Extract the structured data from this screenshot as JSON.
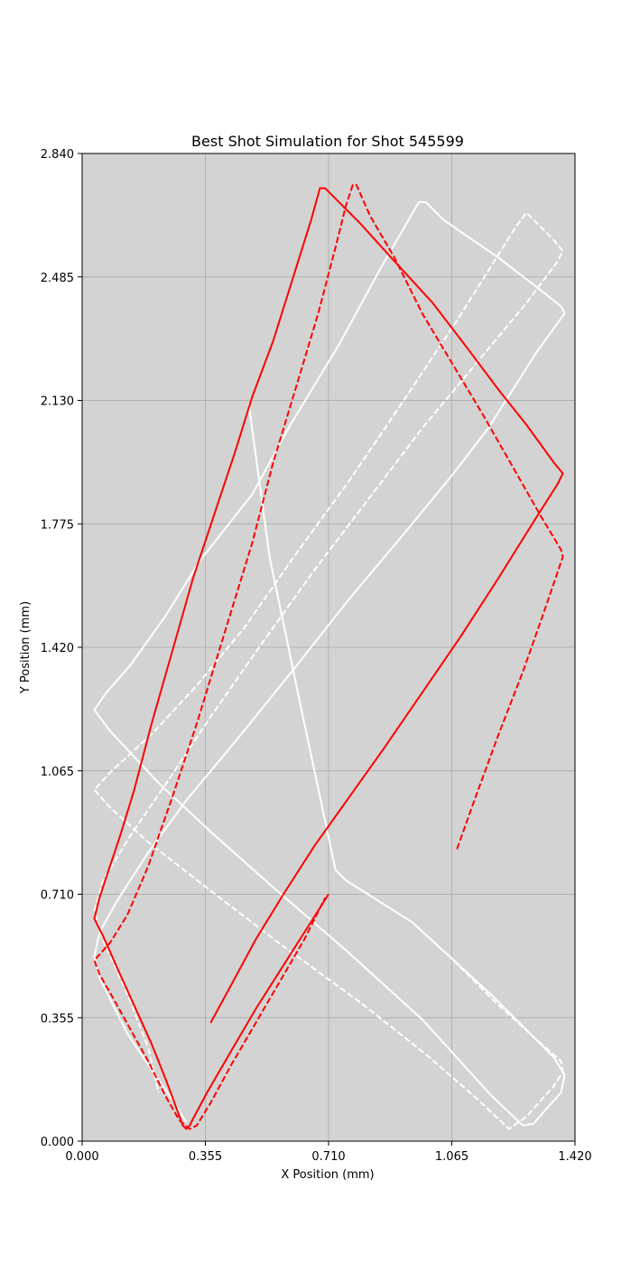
{
  "chart_data": {
    "type": "line",
    "title": "Best Shot Simulation for Shot 545599",
    "xlabel": "X Position (mm)",
    "ylabel": "Y Position (mm)",
    "xlim": [
      0,
      1.42
    ],
    "ylim": [
      0,
      2.84
    ],
    "xticks": [
      "0.000",
      "0.355",
      "0.710",
      "1.065",
      "1.420"
    ],
    "yticks": [
      "0.000",
      "0.355",
      "0.710",
      "1.065",
      "1.420",
      "1.775",
      "2.130",
      "2.485",
      "2.840"
    ],
    "grid": true,
    "background": "#d3d3d3",
    "series": [
      {
        "color": "#ffffff",
        "dash": "solid",
        "points": [
          [
            0.48,
            2.12
          ],
          [
            0.54,
            1.68
          ],
          [
            0.63,
            1.25
          ],
          [
            0.7,
            0.92
          ],
          [
            0.73,
            0.78
          ],
          [
            0.76,
            0.75
          ],
          [
            0.95,
            0.63
          ],
          [
            1.18,
            0.42
          ],
          [
            1.36,
            0.24
          ],
          [
            1.39,
            0.19
          ],
          [
            1.38,
            0.14
          ],
          [
            1.3,
            0.05
          ],
          [
            1.27,
            0.045
          ],
          [
            1.18,
            0.13
          ],
          [
            0.98,
            0.35
          ],
          [
            0.77,
            0.54
          ],
          [
            0.55,
            0.73
          ],
          [
            0.37,
            0.89
          ],
          [
            0.22,
            1.03
          ],
          [
            0.08,
            1.18
          ],
          [
            0.035,
            1.24
          ],
          [
            0.07,
            1.29
          ],
          [
            0.14,
            1.37
          ],
          [
            0.24,
            1.51
          ],
          [
            0.34,
            1.67
          ],
          [
            0.49,
            1.86
          ],
          [
            0.6,
            2.06
          ],
          [
            0.74,
            2.29
          ],
          [
            0.86,
            2.51
          ],
          [
            0.97,
            2.7
          ],
          [
            0.99,
            2.7
          ],
          [
            1.04,
            2.65
          ],
          [
            1.2,
            2.54
          ],
          [
            1.33,
            2.44
          ],
          [
            1.38,
            2.4
          ],
          [
            1.39,
            2.38
          ],
          [
            1.31,
            2.27
          ],
          [
            1.17,
            2.05
          ],
          [
            1.07,
            1.92
          ],
          [
            0.93,
            1.75
          ],
          [
            0.77,
            1.56
          ],
          [
            0.62,
            1.37
          ],
          [
            0.45,
            1.16
          ],
          [
            0.3,
            0.98
          ],
          [
            0.19,
            0.83
          ],
          [
            0.1,
            0.69
          ],
          [
            0.05,
            0.6
          ],
          [
            0.035,
            0.53
          ],
          [
            0.05,
            0.47
          ],
          [
            0.09,
            0.39
          ],
          [
            0.13,
            0.31
          ],
          [
            0.19,
            0.22
          ],
          [
            0.26,
            0.12
          ],
          [
            0.29,
            0.07
          ],
          [
            0.3,
            0.055
          ]
        ]
      },
      {
        "color": "#ffffff",
        "dash": "dashed",
        "points": [
          [
            1.07,
            0.52
          ],
          [
            1.19,
            0.4
          ],
          [
            1.3,
            0.3
          ],
          [
            1.38,
            0.23
          ],
          [
            1.385,
            0.2
          ],
          [
            1.36,
            0.16
          ],
          [
            1.28,
            0.07
          ],
          [
            1.23,
            0.035
          ],
          [
            1.14,
            0.12
          ],
          [
            0.99,
            0.25
          ],
          [
            0.8,
            0.4
          ],
          [
            0.58,
            0.56
          ],
          [
            0.37,
            0.72
          ],
          [
            0.19,
            0.86
          ],
          [
            0.08,
            0.96
          ],
          [
            0.035,
            1.01
          ],
          [
            0.08,
            1.06
          ],
          [
            0.2,
            1.17
          ],
          [
            0.33,
            1.31
          ],
          [
            0.47,
            1.48
          ],
          [
            0.61,
            1.68
          ],
          [
            0.77,
            1.9
          ],
          [
            0.92,
            2.12
          ],
          [
            1.08,
            2.36
          ],
          [
            1.2,
            2.55
          ],
          [
            1.25,
            2.63
          ],
          [
            1.28,
            2.67
          ],
          [
            1.3,
            2.65
          ],
          [
            1.36,
            2.59
          ],
          [
            1.385,
            2.56
          ],
          [
            1.37,
            2.53
          ],
          [
            1.28,
            2.41
          ],
          [
            1.13,
            2.23
          ],
          [
            0.98,
            2.05
          ],
          [
            0.82,
            1.84
          ],
          [
            0.66,
            1.63
          ],
          [
            0.51,
            1.42
          ],
          [
            0.37,
            1.22
          ],
          [
            0.25,
            1.04
          ],
          [
            0.14,
            0.88
          ],
          [
            0.06,
            0.75
          ],
          [
            0.035,
            0.66
          ],
          [
            0.06,
            0.58
          ],
          [
            0.1,
            0.49
          ],
          [
            0.14,
            0.4
          ],
          [
            0.17,
            0.32
          ],
          [
            0.19,
            0.27
          ],
          [
            0.22,
            0.14
          ]
        ]
      },
      {
        "color": "#ff0000",
        "dash": "solid",
        "points": [
          [
            0.71,
            0.71
          ],
          [
            0.64,
            0.6
          ],
          [
            0.57,
            0.49
          ],
          [
            0.5,
            0.38
          ],
          [
            0.43,
            0.26
          ],
          [
            0.36,
            0.14
          ],
          [
            0.32,
            0.065
          ],
          [
            0.31,
            0.045
          ],
          [
            0.3,
            0.035
          ],
          [
            0.29,
            0.045
          ],
          [
            0.27,
            0.1
          ],
          [
            0.24,
            0.18
          ],
          [
            0.2,
            0.28
          ],
          [
            0.15,
            0.39
          ],
          [
            0.1,
            0.5
          ],
          [
            0.06,
            0.59
          ],
          [
            0.035,
            0.64
          ],
          [
            0.05,
            0.7
          ],
          [
            0.07,
            0.76
          ],
          [
            0.11,
            0.88
          ],
          [
            0.15,
            1.01
          ],
          [
            0.2,
            1.2
          ],
          [
            0.26,
            1.41
          ],
          [
            0.32,
            1.62
          ],
          [
            0.38,
            1.8
          ],
          [
            0.44,
            1.98
          ],
          [
            0.49,
            2.14
          ],
          [
            0.55,
            2.3
          ],
          [
            0.61,
            2.49
          ],
          [
            0.66,
            2.65
          ],
          [
            0.685,
            2.74
          ],
          [
            0.7,
            2.74
          ],
          [
            0.73,
            2.71
          ],
          [
            0.8,
            2.64
          ],
          [
            0.9,
            2.53
          ],
          [
            1.01,
            2.41
          ],
          [
            1.11,
            2.28
          ],
          [
            1.2,
            2.16
          ],
          [
            1.28,
            2.06
          ],
          [
            1.36,
            1.95
          ],
          [
            1.385,
            1.92
          ],
          [
            1.37,
            1.89
          ],
          [
            1.3,
            1.78
          ],
          [
            1.2,
            1.62
          ],
          [
            1.09,
            1.45
          ],
          [
            0.98,
            1.29
          ],
          [
            0.87,
            1.13
          ],
          [
            0.77,
            0.99
          ],
          [
            0.67,
            0.85
          ],
          [
            0.58,
            0.71
          ],
          [
            0.5,
            0.58
          ],
          [
            0.43,
            0.45
          ],
          [
            0.37,
            0.34
          ]
        ]
      },
      {
        "color": "#ff0000",
        "dash": "dashed",
        "points": [
          [
            1.08,
            0.84
          ],
          [
            1.13,
            0.98
          ],
          [
            1.2,
            1.17
          ],
          [
            1.27,
            1.35
          ],
          [
            1.33,
            1.52
          ],
          [
            1.385,
            1.68
          ],
          [
            1.38,
            1.7
          ],
          [
            1.32,
            1.8
          ],
          [
            1.24,
            1.94
          ],
          [
            1.16,
            2.08
          ],
          [
            1.07,
            2.23
          ],
          [
            0.98,
            2.38
          ],
          [
            0.9,
            2.54
          ],
          [
            0.83,
            2.66
          ],
          [
            0.79,
            2.75
          ],
          [
            0.78,
            2.75
          ],
          [
            0.76,
            2.69
          ],
          [
            0.73,
            2.57
          ],
          [
            0.68,
            2.38
          ],
          [
            0.62,
            2.18
          ],
          [
            0.55,
            1.95
          ],
          [
            0.49,
            1.72
          ],
          [
            0.41,
            1.46
          ],
          [
            0.33,
            1.2
          ],
          [
            0.26,
            0.99
          ],
          [
            0.19,
            0.79
          ],
          [
            0.13,
            0.65
          ],
          [
            0.08,
            0.57
          ],
          [
            0.035,
            0.52
          ],
          [
            0.05,
            0.48
          ],
          [
            0.09,
            0.41
          ],
          [
            0.14,
            0.32
          ],
          [
            0.19,
            0.23
          ],
          [
            0.24,
            0.13
          ],
          [
            0.28,
            0.06
          ],
          [
            0.31,
            0.035
          ],
          [
            0.33,
            0.045
          ],
          [
            0.37,
            0.11
          ],
          [
            0.43,
            0.22
          ],
          [
            0.5,
            0.34
          ],
          [
            0.57,
            0.46
          ],
          [
            0.64,
            0.58
          ],
          [
            0.7,
            0.7
          ]
        ]
      }
    ]
  }
}
